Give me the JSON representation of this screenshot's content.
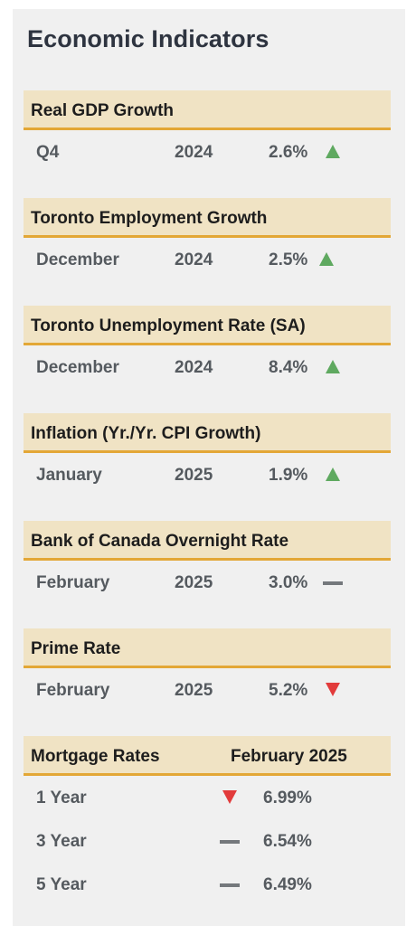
{
  "page": {
    "title": "Economic Indicators"
  },
  "indicators": [
    {
      "label": "Real GDP Growth",
      "period": "Q4",
      "year": "2024",
      "value": "2.6%",
      "trend": "up",
      "trend_icon": "triangle-up-icon"
    },
    {
      "label": "Toronto Employment Growth",
      "period": "December",
      "year": "2024",
      "value": "2.5%",
      "trend": "up",
      "trend_icon": "triangle-up-icon"
    },
    {
      "label": "Toronto Unemployment Rate (SA)",
      "period": "December",
      "year": "2024",
      "value": "8.4%",
      "trend": "up",
      "trend_icon": "triangle-up-icon"
    },
    {
      "label": "Inflation (Yr./Yr. CPI Growth)",
      "period": "January",
      "year": "2025",
      "value": "1.9%",
      "trend": "up",
      "trend_icon": "triangle-up-icon"
    },
    {
      "label": "Bank of Canada Overnight Rate",
      "period": "February",
      "year": "2025",
      "value": "3.0%",
      "trend": "flat",
      "trend_icon": "dash-icon"
    },
    {
      "label": "Prime Rate",
      "period": "February",
      "year": "2025",
      "value": "5.2%",
      "trend": "down",
      "trend_icon": "triangle-down-icon"
    }
  ],
  "mortgage": {
    "label": "Mortgage Rates",
    "date": "February 2025",
    "rows": [
      {
        "term": "1 Year",
        "value": "6.99%",
        "trend": "down",
        "trend_icon": "triangle-down-icon"
      },
      {
        "term": "3 Year",
        "value": "6.54%",
        "trend": "flat",
        "trend_icon": "dash-icon"
      },
      {
        "term": "5 Year",
        "value": "6.49%",
        "trend": "flat",
        "trend_icon": "dash-icon"
      }
    ]
  },
  "colors": {
    "panel_bg": "#f0f0f0",
    "header_bg": "#f0e3c4",
    "header_border": "#e3a736",
    "up": "#5fa960",
    "down": "#e23b3b",
    "flat": "#74787c"
  }
}
